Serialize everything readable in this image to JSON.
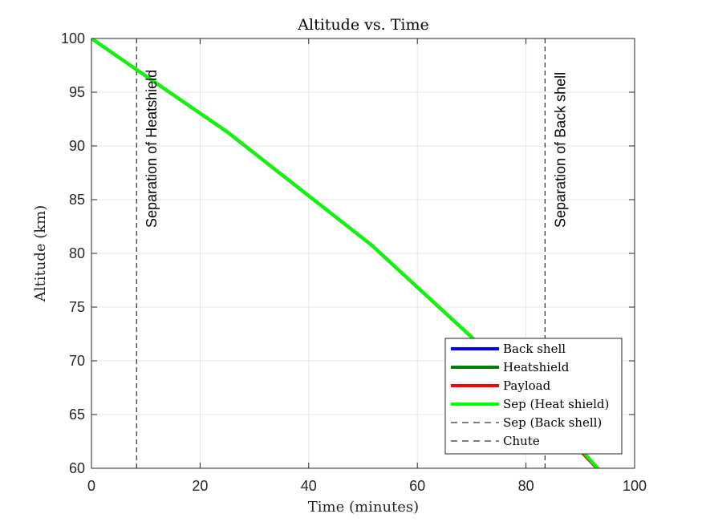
{
  "chart_data": {
    "type": "line",
    "title": "Altitude vs. Time",
    "xlabel": "Time (minutes)",
    "ylabel": "Altitude (km)",
    "xlim": [
      0,
      100
    ],
    "ylim": [
      60,
      100
    ],
    "xticks": [
      "0",
      "20",
      "40",
      "60",
      "80",
      "100"
    ],
    "yticks": [
      "60",
      "65",
      "70",
      "75",
      "80",
      "85",
      "90",
      "95",
      "100"
    ],
    "grid": true,
    "legend_position": "bottom-right",
    "series": [
      {
        "name": "Back shell",
        "color": "#0000ff",
        "style": "solid",
        "x": [
          0,
          8.3,
          25,
          51.5,
          70,
          83.5,
          88,
          93.3
        ],
        "y": [
          100,
          97.1,
          91.3,
          80.8,
          72.2,
          65.3,
          62.7,
          59.9
        ]
      },
      {
        "name": "Heatshield",
        "color": "#007f00",
        "style": "solid",
        "x": [
          0,
          8.3,
          25,
          51.5,
          70,
          83.5,
          88,
          93.3
        ],
        "y": [
          100,
          97.1,
          91.3,
          80.8,
          72.2,
          65.3,
          62.7,
          59.9
        ]
      },
      {
        "name": "Payload",
        "color": "#ff0000",
        "style": "solid",
        "x": [
          0,
          8.3,
          25,
          51.5,
          70,
          83.5,
          88,
          93.3
        ],
        "y": [
          100,
          97.1,
          91.3,
          80.8,
          72.2,
          65.3,
          62.7,
          59.9
        ]
      },
      {
        "name": "Sep (Heat shield)",
        "color": "#00ff00",
        "style": "solid",
        "x": [
          0,
          8.3,
          25,
          51.5,
          70,
          83.5,
          88,
          93.8
        ],
        "y": [
          100,
          97.1,
          91.3,
          80.8,
          72.2,
          65.3,
          62.9,
          59.7
        ]
      }
    ],
    "vlines": [
      {
        "name": "Sep (Back shell)",
        "x": 8.3,
        "color": "#000000",
        "style": "dashed",
        "annotation": "Separation of Heatshield"
      },
      {
        "name": "Chute",
        "x": 83.5,
        "color": "#000000",
        "style": "dashed",
        "annotation": "Separation of Back shell"
      }
    ],
    "legend": [
      {
        "label": "Back shell",
        "color": "#0000ff",
        "style": "solid"
      },
      {
        "label": "Heatshield",
        "color": "#007f00",
        "style": "solid"
      },
      {
        "label": "Payload",
        "color": "#ff0000",
        "style": "solid"
      },
      {
        "label": "Sep (Heat shield)",
        "color": "#00ff00",
        "style": "solid"
      },
      {
        "label": "Sep (Back shell)",
        "color": "#000000",
        "style": "dashed"
      },
      {
        "label": "Chute",
        "color": "#000000",
        "style": "dashed"
      }
    ]
  }
}
